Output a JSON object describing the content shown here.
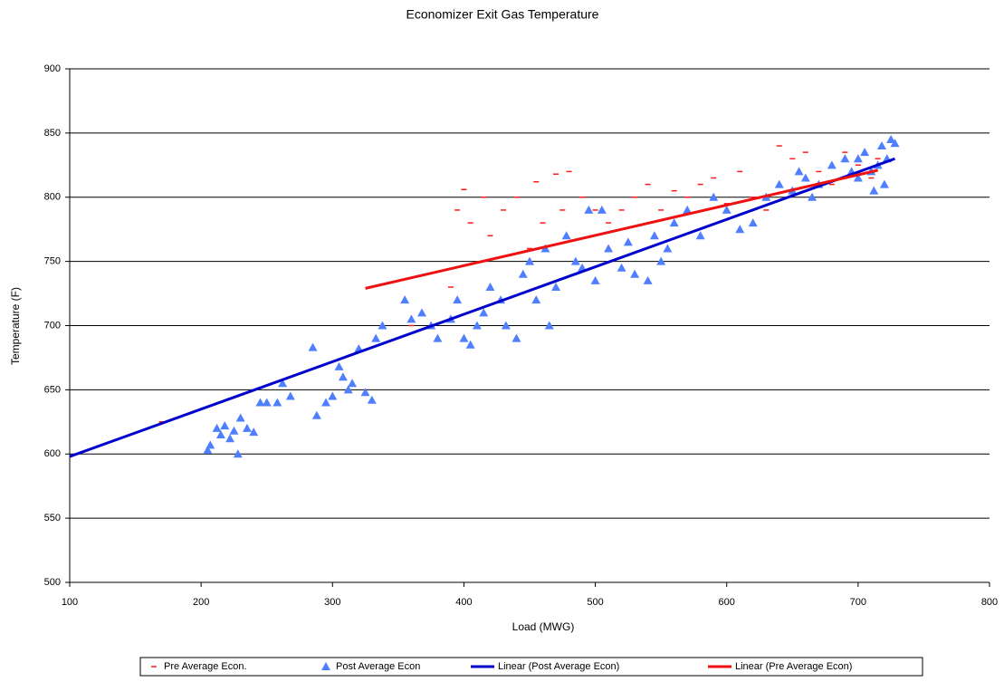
{
  "chart_data": {
    "type": "scatter",
    "title": "Economizer Exit Gas Temperature",
    "x_label": "Load (MWG)",
    "y_label": "Temperature (F)",
    "xlim": [
      100,
      800
    ],
    "xticks": [
      100,
      200,
      300,
      400,
      500,
      600,
      700,
      800
    ],
    "ylim": [
      500,
      900
    ],
    "yticks": [
      500,
      550,
      600,
      650,
      700,
      750,
      800,
      850,
      900
    ],
    "grid": true,
    "legend": "bottom",
    "series": [
      {
        "name": "Pre Average Econ.",
        "type": "scatter",
        "marker": "dash",
        "color": "#ff1a1a",
        "x": [
          170,
          360,
          390,
          395,
          400,
          405,
          415,
          420,
          430,
          440,
          450,
          455,
          460,
          470,
          475,
          480,
          490,
          500,
          510,
          520,
          530,
          540,
          550,
          560,
          570,
          580,
          590,
          600,
          610,
          620,
          630,
          640,
          650,
          660,
          670,
          680,
          690,
          700,
          710,
          715
        ],
        "values": [
          625,
          700,
          730,
          790,
          806,
          780,
          800,
          770,
          790,
          800,
          760,
          812,
          780,
          818,
          790,
          820,
          800,
          790,
          780,
          790,
          800,
          810,
          790,
          805,
          800,
          810,
          815,
          795,
          820,
          800,
          790,
          840,
          830,
          835,
          820,
          810,
          835,
          825,
          815,
          830
        ]
      },
      {
        "name": "Post Average Econ",
        "type": "scatter",
        "marker": "triangle",
        "color": "#4f7fff",
        "x": [
          205,
          207,
          212,
          215,
          218,
          222,
          225,
          228,
          230,
          235,
          240,
          245,
          250,
          258,
          262,
          268,
          285,
          288,
          295,
          300,
          305,
          308,
          312,
          315,
          320,
          325,
          330,
          333,
          338,
          355,
          360,
          368,
          375,
          380,
          390,
          395,
          400,
          405,
          410,
          415,
          420,
          428,
          432,
          440,
          445,
          450,
          455,
          462,
          465,
          470,
          478,
          485,
          490,
          495,
          500,
          505,
          510,
          520,
          525,
          530,
          540,
          545,
          550,
          555,
          560,
          570,
          580,
          590,
          600,
          610,
          620,
          630,
          640,
          650,
          655,
          660,
          670,
          680,
          690,
          695,
          700,
          705,
          710,
          715,
          718,
          720,
          722,
          725,
          728,
          712,
          700,
          665
        ],
        "values": [
          603,
          607,
          620,
          615,
          622,
          612,
          618,
          600,
          628,
          620,
          617,
          640,
          640,
          640,
          655,
          645,
          683,
          630,
          640,
          645,
          668,
          660,
          650,
          655,
          682,
          648,
          642,
          690,
          700,
          720,
          705,
          710,
          700,
          690,
          705,
          720,
          690,
          685,
          700,
          710,
          730,
          720,
          700,
          690,
          740,
          750,
          720,
          760,
          700,
          730,
          770,
          750,
          745,
          790,
          735,
          790,
          760,
          745,
          765,
          740,
          735,
          770,
          750,
          760,
          780,
          790,
          770,
          800,
          790,
          775,
          780,
          800,
          810,
          805,
          820,
          815,
          810,
          825,
          830,
          820,
          815,
          835,
          820,
          825,
          840,
          810,
          830,
          845,
          842,
          805,
          830,
          800
        ]
      },
      {
        "name": "Linear (Post Average Econ)",
        "type": "line",
        "color": "#0000cc",
        "x": [
          100,
          728
        ],
        "values": [
          598,
          830
        ]
      },
      {
        "name": "Linear (Pre Average Econ)",
        "type": "line",
        "color": "#ee1111",
        "x": [
          325,
          715
        ],
        "values": [
          729,
          821
        ]
      }
    ]
  }
}
